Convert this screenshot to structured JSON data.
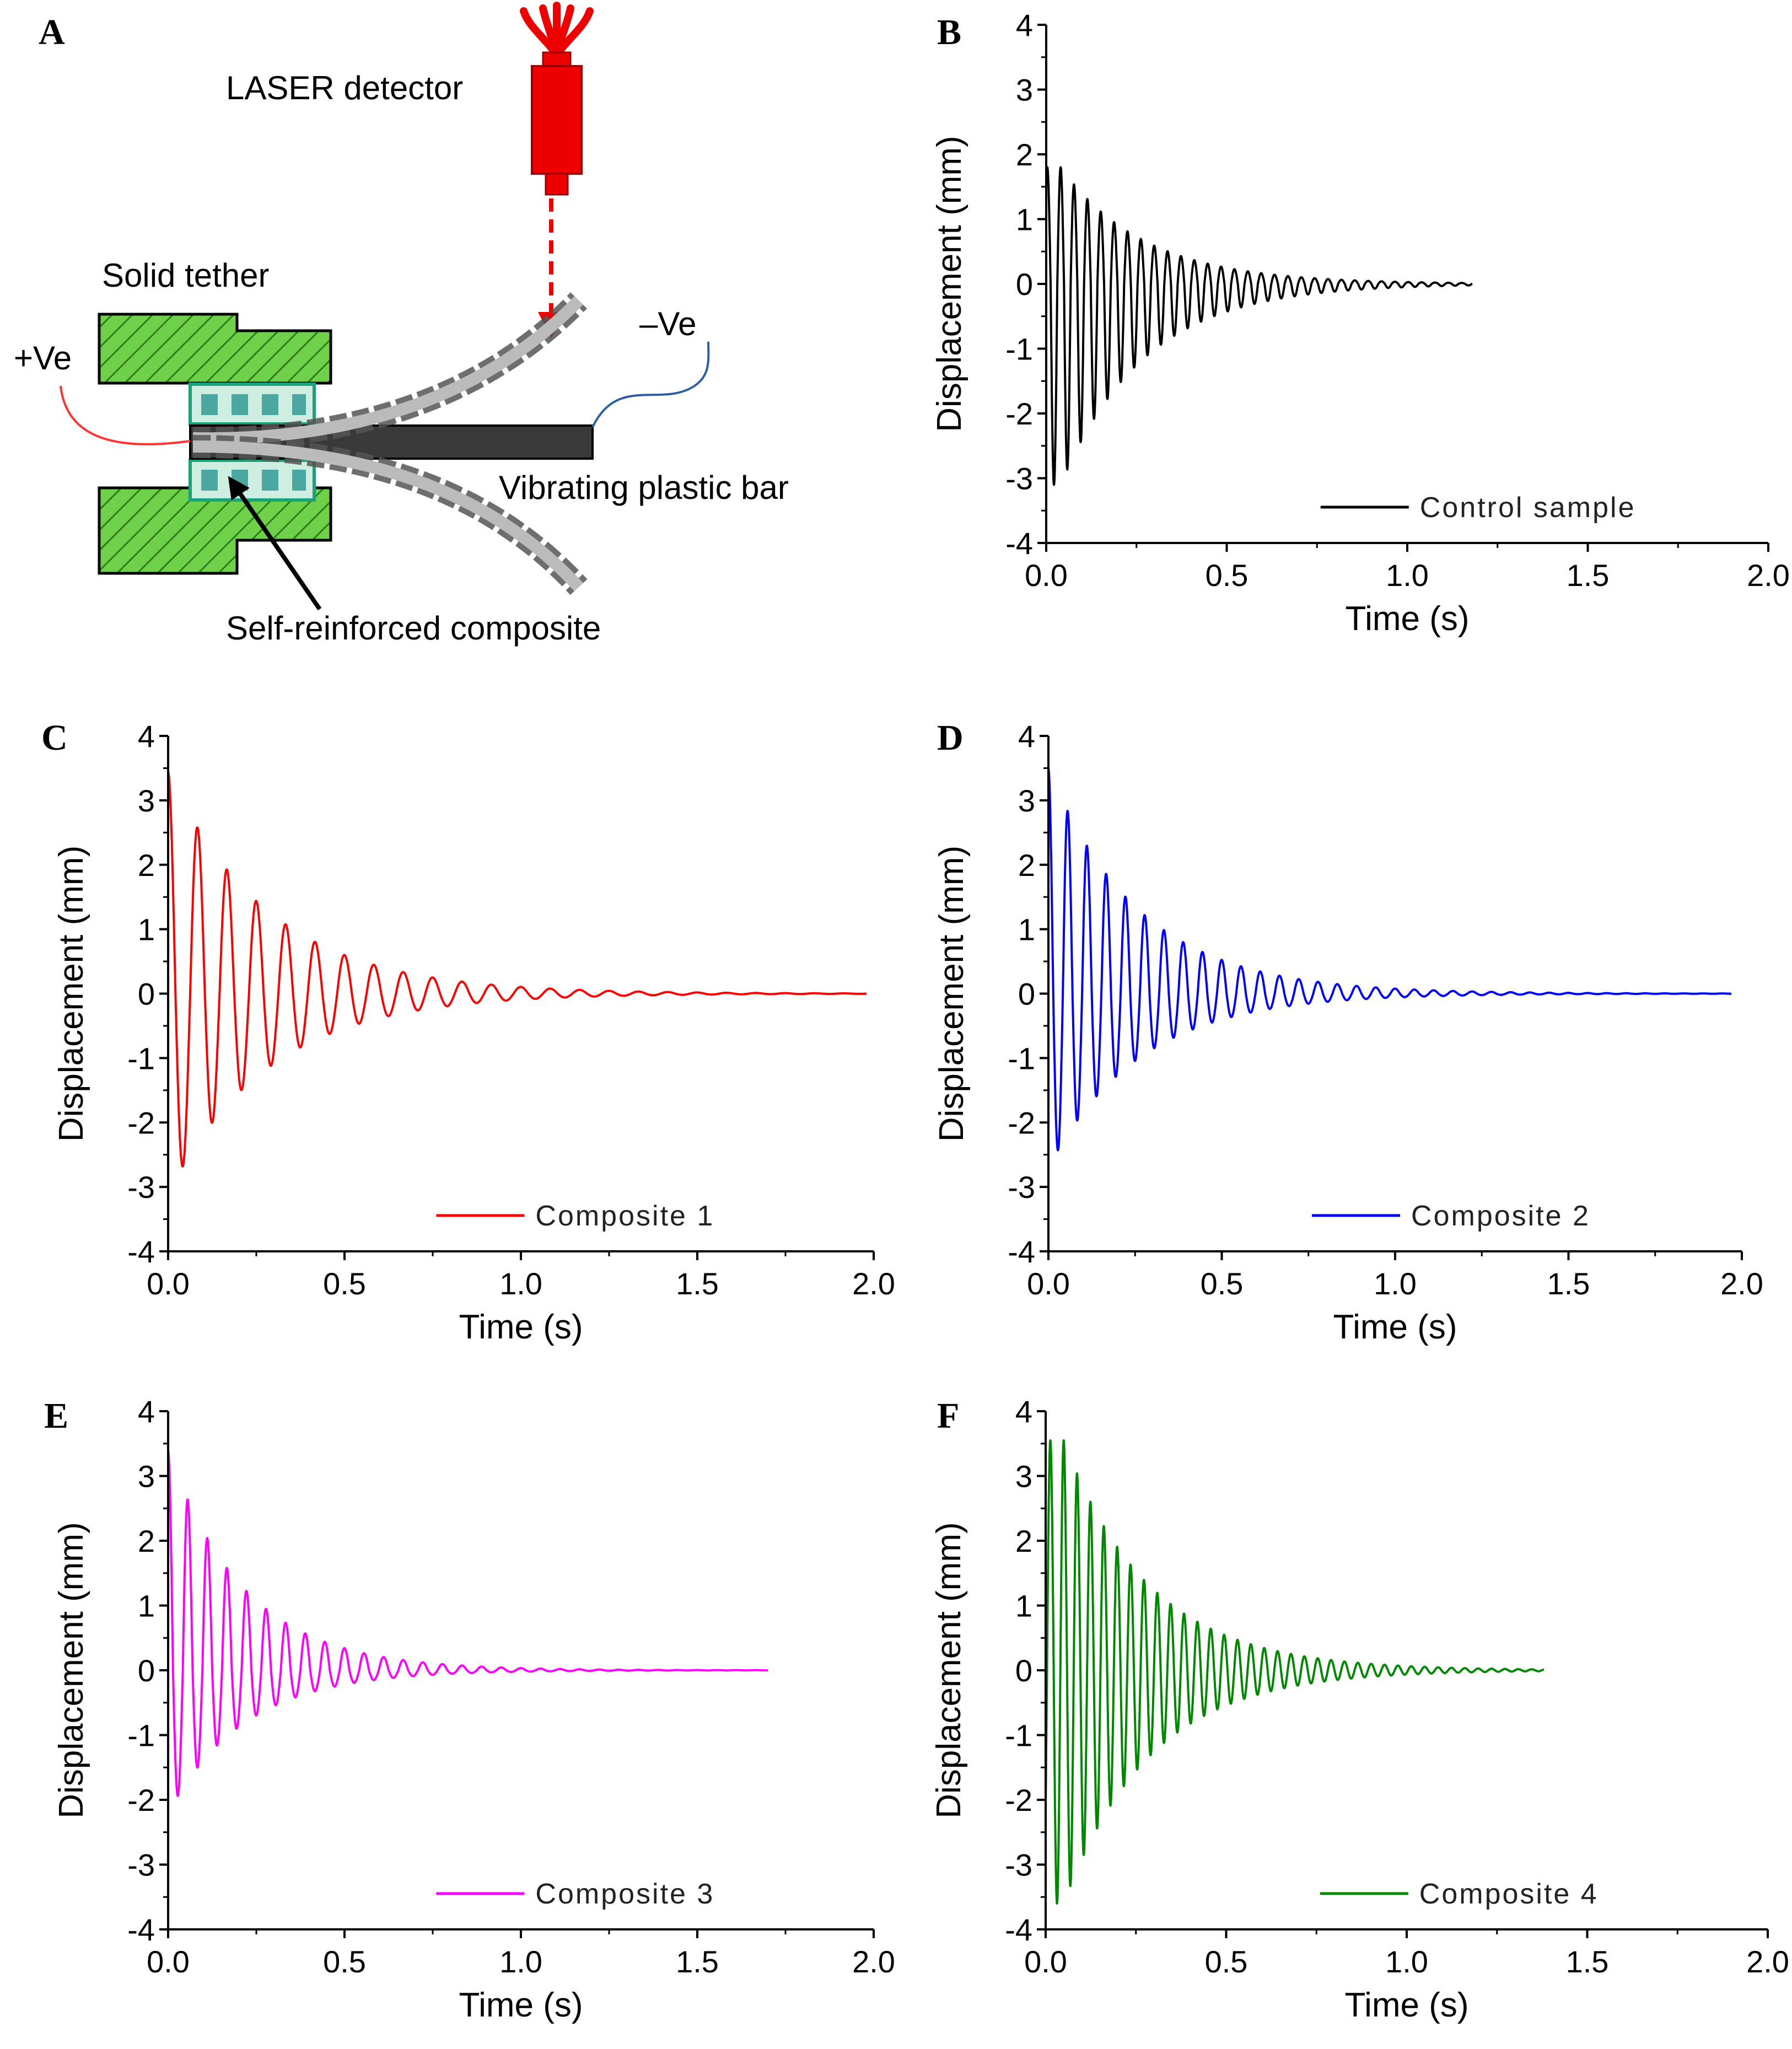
{
  "panel_a": {
    "label": "A",
    "laser_label": "LASER detector",
    "tether_label": "Solid tether",
    "pos_label": "+Ve",
    "neg_label": "–Ve",
    "bar_label": "Vibrating plastic bar",
    "composite_label": "Self-reinforced composite",
    "colors": {
      "tether": "#6fd14a",
      "composite": "#cdeee0",
      "laser": "#ee0000",
      "bar": "#3a3a3a",
      "pos_wire": "#ff3333",
      "neg_wire": "#2a5fa8"
    }
  },
  "chart_data": [
    {
      "id": "B",
      "type": "line",
      "panel_label": "B",
      "legend": "Control sample",
      "color": "#000000",
      "xlabel": "Time (s)",
      "ylabel": "Displacement (mm)",
      "xlim": [
        0,
        2.0
      ],
      "ylim": [
        -4,
        4
      ],
      "xticks": [
        "0.0",
        "0.5",
        "1.0",
        "1.5",
        "2.0"
      ],
      "yticks": [
        "-4",
        "-3",
        "-2",
        "-1",
        "0",
        "1",
        "2",
        "3",
        "4"
      ],
      "signal": {
        "t_end": 1.18,
        "frequency_hz": 27,
        "peak_positive": 1.8,
        "peak_negative": -3.1,
        "decay_per_s": 4.3,
        "peak_time": 0.04
      }
    },
    {
      "id": "C",
      "type": "line",
      "panel_label": "C",
      "legend": "Composite 1",
      "color": "#ff0000",
      "xlabel": "Time (s)",
      "ylabel": "Displacement (mm)",
      "xlim": [
        0,
        2.0
      ],
      "ylim": [
        -4,
        4
      ],
      "xticks": [
        "0.0",
        "0.5",
        "1.0",
        "1.5",
        "2.0"
      ],
      "yticks": [
        "-4",
        "-3",
        "-2",
        "-1",
        "0",
        "1",
        "2",
        "3",
        "4"
      ],
      "signal": {
        "t_end": 1.98,
        "frequency_hz": 12,
        "peak_positive": 3.45,
        "peak_negative": -3.1,
        "decay_per_s": 3.5,
        "peak_time": 0.0
      }
    },
    {
      "id": "D",
      "type": "line",
      "panel_label": "D",
      "legend": "Composite 2",
      "color": "#0000ff",
      "xlabel": "Time (s)",
      "ylabel": "Displacement (mm)",
      "xlim": [
        0,
        2.0
      ],
      "ylim": [
        -4,
        4
      ],
      "xticks": [
        "0.0",
        "0.5",
        "1.0",
        "1.5",
        "2.0"
      ],
      "yticks": [
        "-4",
        "-3",
        "-2",
        "-1",
        "0",
        "1",
        "2",
        "3",
        "4"
      ],
      "signal": {
        "t_end": 1.97,
        "frequency_hz": 18,
        "peak_positive": 3.5,
        "peak_negative": -2.7,
        "decay_per_s": 3.8,
        "peak_time": 0.0
      }
    },
    {
      "id": "E",
      "type": "line",
      "panel_label": "E",
      "legend": "Composite 3",
      "color": "#ff00ff",
      "xlabel": "Time (s)",
      "ylabel": "Displacement (mm)",
      "xlim": [
        0,
        2.0
      ],
      "ylim": [
        -4,
        4
      ],
      "xticks": [
        "0.0",
        "0.5",
        "1.0",
        "1.5",
        "2.0"
      ],
      "yticks": [
        "-4",
        "-3",
        "-2",
        "-1",
        "0",
        "1",
        "2",
        "3",
        "4"
      ],
      "signal": {
        "t_end": 1.7,
        "frequency_hz": 18,
        "peak_positive": 3.4,
        "peak_negative": -2.2,
        "decay_per_s": 4.6,
        "peak_time": 0.0
      }
    },
    {
      "id": "F",
      "type": "line",
      "panel_label": "F",
      "legend": "Composite 4",
      "color": "#008800",
      "xlabel": "Time (s)",
      "ylabel": "Displacement (mm)",
      "xlim": [
        0,
        2.0
      ],
      "ylim": [
        -4,
        4
      ],
      "xticks": [
        "0.0",
        "0.5",
        "1.0",
        "1.5",
        "2.0"
      ],
      "yticks": [
        "-4",
        "-3",
        "-2",
        "-1",
        "0",
        "1",
        "2",
        "3",
        "4"
      ],
      "signal": {
        "t_end": 1.38,
        "frequency_hz": 27,
        "peak_positive": 3.55,
        "peak_negative": -3.6,
        "decay_per_s": 4.2,
        "peak_time": 0.05
      }
    }
  ]
}
